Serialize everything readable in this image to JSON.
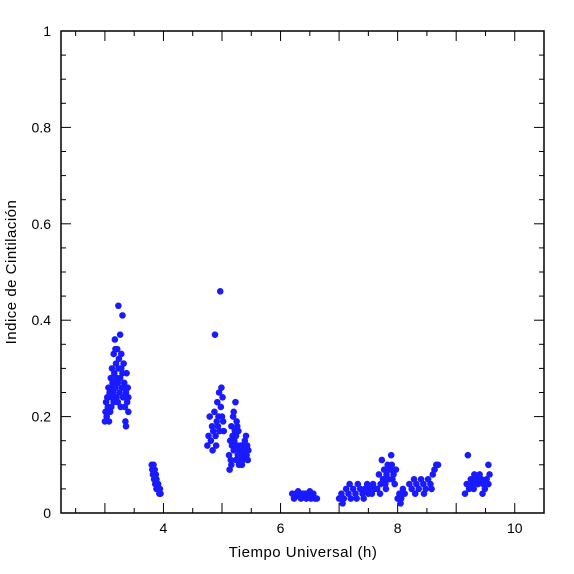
{
  "chart_data": {
    "type": "scatter",
    "xlabel": "Tiempo Universal (h)",
    "ylabel": "Indice de Cintilación",
    "xlim": [
      2.25,
      10.5
    ],
    "ylim": [
      0,
      1
    ],
    "xticks": [
      4,
      6,
      8,
      10
    ],
    "xtick_labels": [
      "4",
      "6",
      "8",
      "10"
    ],
    "yticks": [
      0,
      0.2,
      0.4,
      0.6,
      0.8,
      1
    ],
    "ytick_labels": [
      "0",
      "0.2",
      "0.4",
      "0.6",
      "0.8",
      "1"
    ],
    "grid": false,
    "marker_color": "#1a1aff",
    "points": [
      [
        3.0,
        0.19
      ],
      [
        3.01,
        0.21
      ],
      [
        3.02,
        0.23
      ],
      [
        3.03,
        0.2
      ],
      [
        3.04,
        0.24
      ],
      [
        3.05,
        0.22
      ],
      [
        3.06,
        0.26
      ],
      [
        3.07,
        0.19
      ],
      [
        3.08,
        0.25
      ],
      [
        3.09,
        0.21
      ],
      [
        3.1,
        0.28
      ],
      [
        3.1,
        0.24
      ],
      [
        3.11,
        0.22
      ],
      [
        3.12,
        0.3
      ],
      [
        3.13,
        0.27
      ],
      [
        3.14,
        0.25
      ],
      [
        3.15,
        0.33
      ],
      [
        3.15,
        0.23
      ],
      [
        3.16,
        0.29
      ],
      [
        3.17,
        0.36
      ],
      [
        3.18,
        0.26
      ],
      [
        3.19,
        0.31
      ],
      [
        3.2,
        0.28
      ],
      [
        3.2,
        0.24
      ],
      [
        3.21,
        0.34
      ],
      [
        3.22,
        0.27
      ],
      [
        3.23,
        0.43
      ],
      [
        3.23,
        0.3
      ],
      [
        3.24,
        0.32
      ],
      [
        3.25,
        0.25
      ],
      [
        3.26,
        0.37
      ],
      [
        3.26,
        0.28
      ],
      [
        3.27,
        0.22
      ],
      [
        3.28,
        0.33
      ],
      [
        3.29,
        0.26
      ],
      [
        3.3,
        0.41
      ],
      [
        3.3,
        0.29
      ],
      [
        3.31,
        0.24
      ],
      [
        3.32,
        0.31
      ],
      [
        3.33,
        0.27
      ],
      [
        3.34,
        0.22
      ],
      [
        3.35,
        0.19
      ],
      [
        3.36,
        0.25
      ],
      [
        3.37,
        0.29
      ],
      [
        3.38,
        0.23
      ],
      [
        3.39,
        0.26
      ],
      [
        3.4,
        0.21
      ],
      [
        3.4,
        0.24
      ],
      [
        3.18,
        0.34
      ],
      [
        3.12,
        0.26
      ],
      [
        3.05,
        0.24
      ],
      [
        3.28,
        0.3
      ],
      [
        3.22,
        0.23
      ],
      [
        3.34,
        0.26
      ],
      [
        3.16,
        0.27
      ],
      [
        3.36,
        0.18
      ],
      [
        3.8,
        0.1
      ],
      [
        3.81,
        0.09
      ],
      [
        3.82,
        0.08
      ],
      [
        3.83,
        0.1
      ],
      [
        3.84,
        0.07
      ],
      [
        3.85,
        0.09
      ],
      [
        3.86,
        0.06
      ],
      [
        3.87,
        0.08
      ],
      [
        3.88,
        0.07
      ],
      [
        3.89,
        0.06
      ],
      [
        3.9,
        0.05
      ],
      [
        3.91,
        0.06
      ],
      [
        3.92,
        0.05
      ],
      [
        3.93,
        0.04
      ],
      [
        3.94,
        0.05
      ],
      [
        3.95,
        0.04
      ],
      [
        3.83,
        0.08
      ],
      [
        3.88,
        0.05
      ],
      [
        4.75,
        0.14
      ],
      [
        4.77,
        0.16
      ],
      [
        4.79,
        0.2
      ],
      [
        4.81,
        0.15
      ],
      [
        4.83,
        0.18
      ],
      [
        4.85,
        0.17
      ],
      [
        4.87,
        0.21
      ],
      [
        4.88,
        0.37
      ],
      [
        4.89,
        0.16
      ],
      [
        4.91,
        0.19
      ],
      [
        4.92,
        0.23
      ],
      [
        4.93,
        0.18
      ],
      [
        4.94,
        0.2
      ],
      [
        4.95,
        0.25
      ],
      [
        4.96,
        0.17
      ],
      [
        4.97,
        0.46
      ],
      [
        4.98,
        0.22
      ],
      [
        4.99,
        0.26
      ],
      [
        5.0,
        0.2
      ],
      [
        5.01,
        0.24
      ],
      [
        5.02,
        0.19
      ],
      [
        5.03,
        0.17
      ],
      [
        4.84,
        0.13
      ],
      [
        4.9,
        0.14
      ],
      [
        5.12,
        0.12
      ],
      [
        5.13,
        0.09
      ],
      [
        5.14,
        0.15
      ],
      [
        5.15,
        0.11
      ],
      [
        5.16,
        0.18
      ],
      [
        5.17,
        0.14
      ],
      [
        5.18,
        0.16
      ],
      [
        5.19,
        0.2
      ],
      [
        5.2,
        0.13
      ],
      [
        5.21,
        0.15
      ],
      [
        5.22,
        0.17
      ],
      [
        5.23,
        0.23
      ],
      [
        5.24,
        0.16
      ],
      [
        5.25,
        0.19
      ],
      [
        5.26,
        0.14
      ],
      [
        5.27,
        0.12
      ],
      [
        5.28,
        0.17
      ],
      [
        5.29,
        0.1
      ],
      [
        5.3,
        0.13
      ],
      [
        5.31,
        0.11
      ],
      [
        5.32,
        0.14
      ],
      [
        5.33,
        0.12
      ],
      [
        5.34,
        0.1
      ],
      [
        5.35,
        0.13
      ],
      [
        5.36,
        0.11
      ],
      [
        5.37,
        0.14
      ],
      [
        5.38,
        0.12
      ],
      [
        5.39,
        0.15
      ],
      [
        5.4,
        0.13
      ],
      [
        5.41,
        0.16
      ],
      [
        5.42,
        0.12
      ],
      [
        5.43,
        0.14
      ],
      [
        5.44,
        0.11
      ],
      [
        5.45,
        0.13
      ],
      [
        5.2,
        0.21
      ],
      [
        5.26,
        0.18
      ],
      [
        5.16,
        0.1
      ],
      [
        5.24,
        0.11
      ],
      [
        6.2,
        0.04
      ],
      [
        6.23,
        0.03
      ],
      [
        6.26,
        0.04
      ],
      [
        6.29,
        0.035
      ],
      [
        6.32,
        0.04
      ],
      [
        6.35,
        0.03
      ],
      [
        6.38,
        0.04
      ],
      [
        6.41,
        0.035
      ],
      [
        6.44,
        0.03
      ],
      [
        6.47,
        0.04
      ],
      [
        6.5,
        0.045
      ],
      [
        6.53,
        0.035
      ],
      [
        6.56,
        0.04
      ],
      [
        6.59,
        0.03
      ],
      [
        6.62,
        0.03
      ],
      [
        6.3,
        0.045
      ],
      [
        6.42,
        0.04
      ],
      [
        6.52,
        0.03
      ],
      [
        7.0,
        0.03
      ],
      [
        7.04,
        0.04
      ],
      [
        7.08,
        0.03
      ],
      [
        7.12,
        0.05
      ],
      [
        7.16,
        0.04
      ],
      [
        7.2,
        0.03
      ],
      [
        7.24,
        0.05
      ],
      [
        7.28,
        0.04
      ],
      [
        7.32,
        0.06
      ],
      [
        7.36,
        0.05
      ],
      [
        7.4,
        0.04
      ],
      [
        7.44,
        0.05
      ],
      [
        7.48,
        0.06
      ],
      [
        7.52,
        0.05
      ],
      [
        7.56,
        0.04
      ],
      [
        7.6,
        0.05
      ],
      [
        7.06,
        0.02
      ],
      [
        7.18,
        0.06
      ],
      [
        7.3,
        0.03
      ],
      [
        7.42,
        0.03
      ],
      [
        7.5,
        0.04
      ],
      [
        7.58,
        0.06
      ],
      [
        7.65,
        0.05
      ],
      [
        7.68,
        0.08
      ],
      [
        7.71,
        0.06
      ],
      [
        7.73,
        0.11
      ],
      [
        7.75,
        0.07
      ],
      [
        7.77,
        0.09
      ],
      [
        7.79,
        0.06
      ],
      [
        7.81,
        0.08
      ],
      [
        7.83,
        0.1
      ],
      [
        7.85,
        0.07
      ],
      [
        7.87,
        0.09
      ],
      [
        7.89,
        0.12
      ],
      [
        7.91,
        0.07
      ],
      [
        7.93,
        0.08
      ],
      [
        7.95,
        0.06
      ],
      [
        7.97,
        0.09
      ],
      [
        7.7,
        0.04
      ],
      [
        7.8,
        0.05
      ],
      [
        7.9,
        0.1
      ],
      [
        8.0,
        0.03
      ],
      [
        8.03,
        0.04
      ],
      [
        8.06,
        0.03
      ],
      [
        8.09,
        0.05
      ],
      [
        8.12,
        0.04
      ],
      [
        8.05,
        0.02
      ],
      [
        8.2,
        0.06
      ],
      [
        8.24,
        0.05
      ],
      [
        8.28,
        0.07
      ],
      [
        8.32,
        0.06
      ],
      [
        8.36,
        0.05
      ],
      [
        8.4,
        0.07
      ],
      [
        8.44,
        0.06
      ],
      [
        8.48,
        0.05
      ],
      [
        8.52,
        0.07
      ],
      [
        8.56,
        0.06
      ],
      [
        8.6,
        0.08
      ],
      [
        8.63,
        0.09
      ],
      [
        8.66,
        0.1
      ],
      [
        8.69,
        0.1
      ],
      [
        8.3,
        0.04
      ],
      [
        8.45,
        0.04
      ],
      [
        8.58,
        0.05
      ],
      [
        9.15,
        0.04
      ],
      [
        9.18,
        0.06
      ],
      [
        9.2,
        0.12
      ],
      [
        9.22,
        0.05
      ],
      [
        9.25,
        0.07
      ],
      [
        9.28,
        0.06
      ],
      [
        9.31,
        0.08
      ],
      [
        9.34,
        0.07
      ],
      [
        9.37,
        0.06
      ],
      [
        9.4,
        0.08
      ],
      [
        9.43,
        0.07
      ],
      [
        9.46,
        0.06
      ],
      [
        9.49,
        0.05
      ],
      [
        9.52,
        0.07
      ],
      [
        9.55,
        0.1
      ],
      [
        9.57,
        0.08
      ],
      [
        9.3,
        0.05
      ],
      [
        9.45,
        0.04
      ],
      [
        9.55,
        0.06
      ]
    ]
  }
}
